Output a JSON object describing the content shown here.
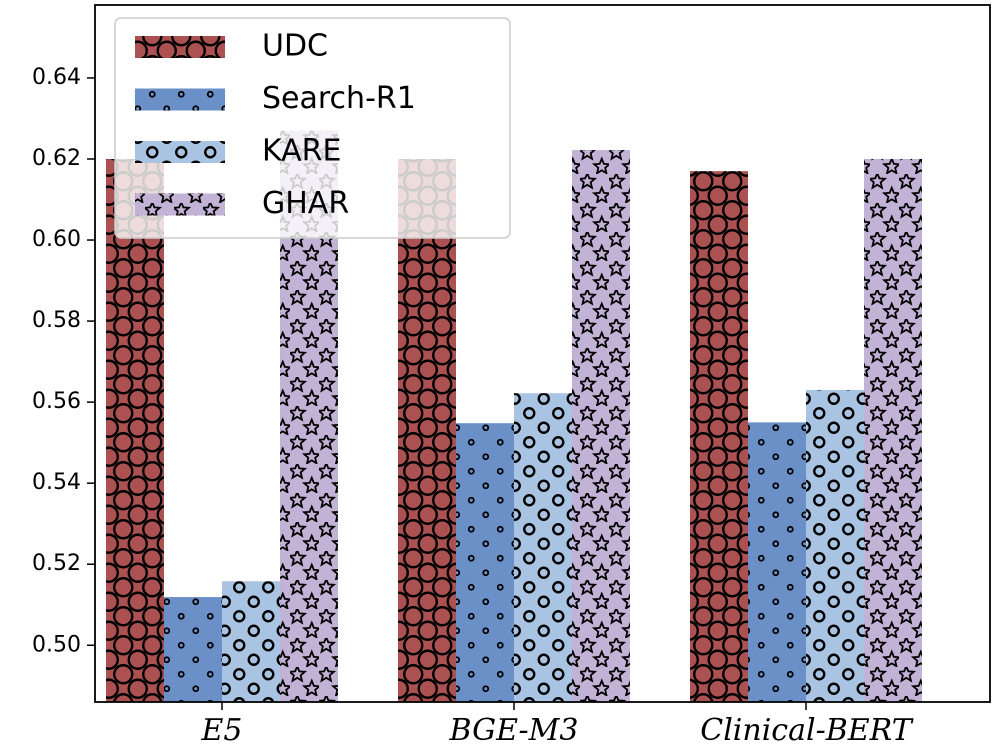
{
  "chart_data": {
    "type": "bar",
    "categories": [
      "E5",
      "BGE-M3",
      "Clinical-BERT"
    ],
    "series": [
      {
        "name": "UDC",
        "color": "#ab5151",
        "hatch": "O",
        "values": [
          0.62,
          0.62,
          0.617
        ]
      },
      {
        "name": "Search-R1",
        "color": "#6b90c8",
        "hatch": ".",
        "values": [
          0.5119,
          0.5548,
          0.555
        ]
      },
      {
        "name": "KARE",
        "color": "#a9c4e3",
        "hatch": "o",
        "values": [
          0.5158,
          0.5622,
          0.563
        ]
      },
      {
        "name": "GHAR",
        "color": "#c2b2d6",
        "hatch": "*",
        "values": [
          0.627,
          0.6222,
          0.62
        ]
      }
    ],
    "ylim": [
      0.486,
      0.658
    ],
    "yticks": [
      {
        "value": 0.5,
        "label": "0.50"
      },
      0.52,
      0.54,
      0.56,
      0.58,
      {
        "value": 0.6,
        "label": "0.60"
      },
      0.62,
      0.64
    ],
    "legend": "upper left"
  }
}
